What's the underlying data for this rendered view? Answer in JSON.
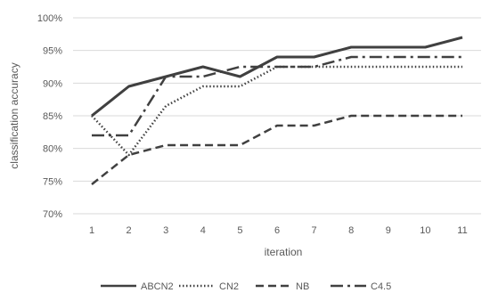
{
  "chart_data": {
    "type": "line",
    "xlabel": "iteration",
    "ylabel": "classification accuracy",
    "x": [
      1,
      2,
      3,
      4,
      5,
      6,
      7,
      8,
      9,
      10,
      11
    ],
    "x_tick_labels": [
      "1",
      "2",
      "3",
      "4",
      "5",
      "6",
      "7",
      "8",
      "9",
      "10",
      "11"
    ],
    "ylim": [
      70,
      100
    ],
    "y_ticks": [
      70,
      75,
      80,
      85,
      90,
      95,
      100
    ],
    "y_tick_labels": [
      "70%",
      "75%",
      "80%",
      "85%",
      "90%",
      "95%",
      "100%"
    ],
    "grid": "horizontal",
    "legend_position": "bottom",
    "series": [
      {
        "name": "ABCN2",
        "style": "solid",
        "color": "#404040",
        "values": [
          85.0,
          89.5,
          91.0,
          92.5,
          91.0,
          94.0,
          94.0,
          95.5,
          95.5,
          95.5,
          97.0
        ]
      },
      {
        "name": "CN2",
        "style": "dotted",
        "color": "#404040",
        "values": [
          85.0,
          79.0,
          86.5,
          89.5,
          89.5,
          92.5,
          92.5,
          92.5,
          92.5,
          92.5,
          92.5
        ]
      },
      {
        "name": "NB",
        "style": "dashed",
        "color": "#404040",
        "values": [
          74.5,
          79.0,
          80.5,
          80.5,
          80.5,
          83.5,
          83.5,
          85.0,
          85.0,
          85.0,
          85.0
        ]
      },
      {
        "name": "C4.5",
        "style": "dashdot",
        "color": "#404040",
        "values": [
          82.0,
          82.0,
          91.0,
          91.0,
          92.5,
          92.5,
          92.5,
          94.0,
          94.0,
          94.0,
          94.0
        ]
      }
    ]
  }
}
